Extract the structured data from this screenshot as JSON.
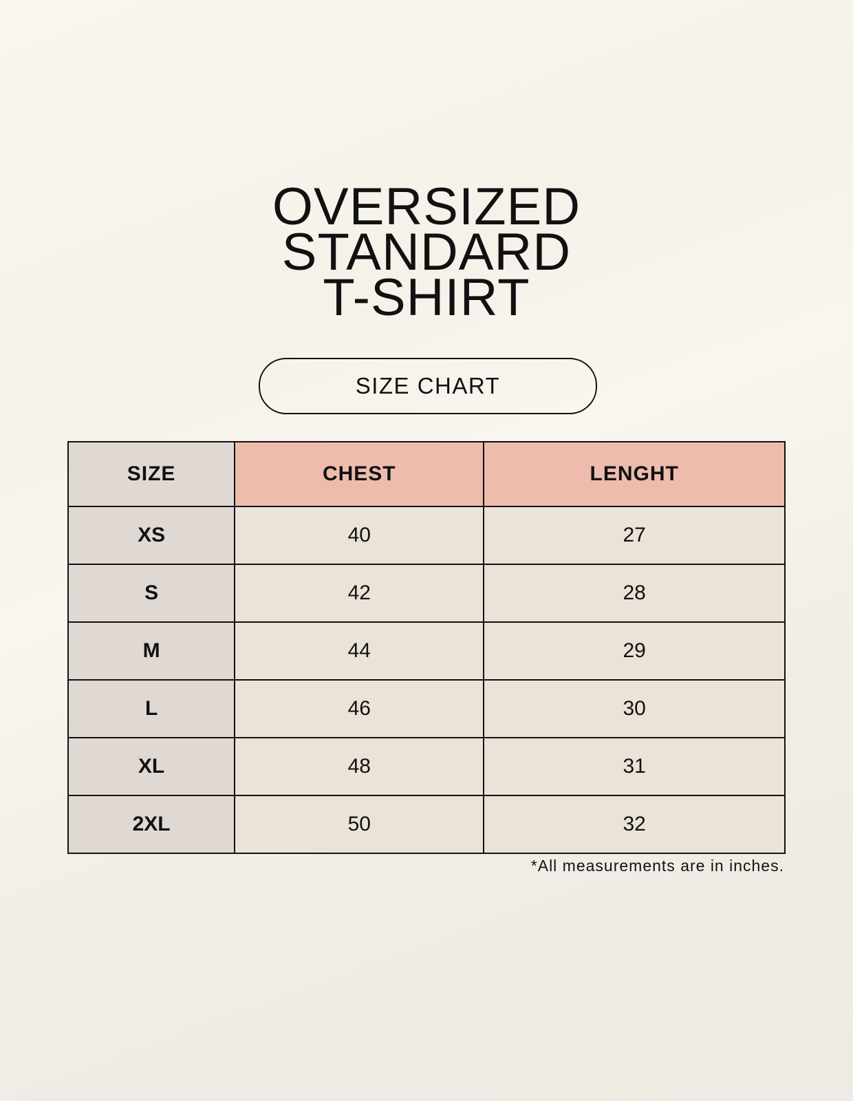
{
  "title": {
    "lines": [
      "OVERSIZED",
      "STANDARD",
      "T-SHIRT"
    ]
  },
  "badge": "SIZE CHART",
  "table": {
    "headers": [
      "SIZE",
      "CHEST",
      "LENGHT"
    ],
    "rows": [
      [
        "XS",
        "40",
        "27"
      ],
      [
        "S",
        "42",
        "28"
      ],
      [
        "M",
        "44",
        "29"
      ],
      [
        "L",
        "46",
        "30"
      ],
      [
        "XL",
        "48",
        "31"
      ],
      [
        "2XL",
        "50",
        "32"
      ]
    ]
  },
  "footnote": "*All measurements are in inches.",
  "colors": {
    "size_column": "#e0d9d3",
    "header_accent": "#edbcad",
    "cell": "#ebe3d8"
  }
}
